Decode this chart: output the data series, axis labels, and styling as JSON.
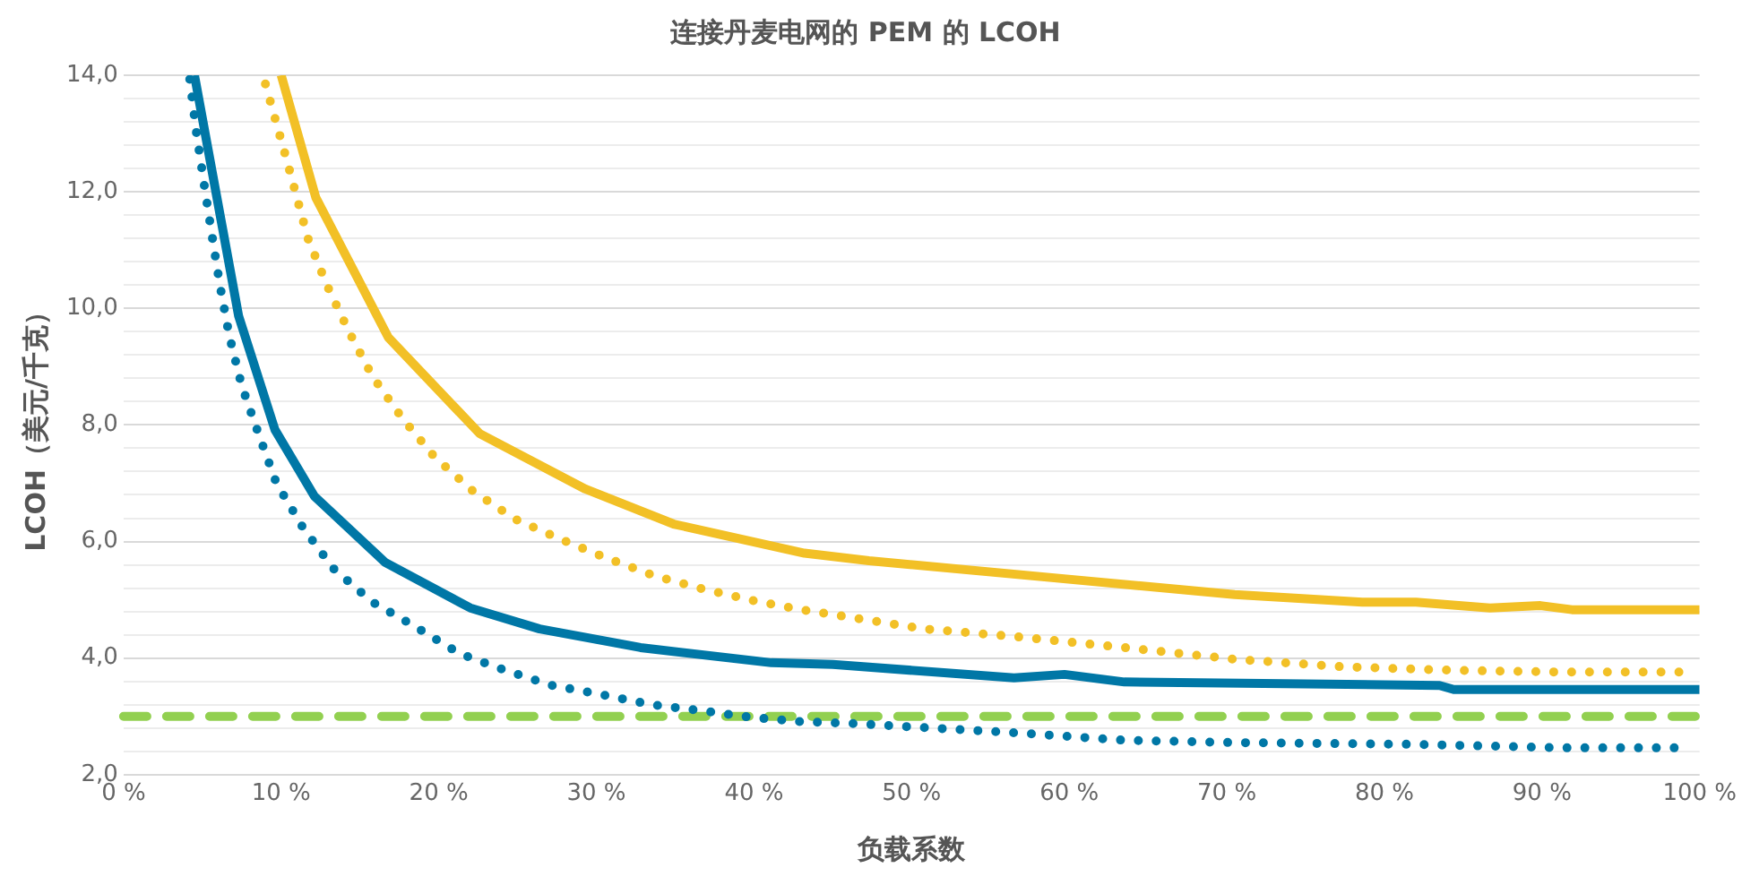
{
  "chart_data": {
    "type": "line",
    "title": "连接丹麦电网的 PEM 的 LCOH",
    "xlabel": "负载系数",
    "ylabel": "LCOH（美元/千克）",
    "series": [
      {
        "color": "#0077a6",
        "line_style": "solid",
        "x": [
          4.5,
          7.3,
          9.6,
          12.1,
          16.6,
          22.0,
          26.4,
          32.8,
          41.1,
          45.0,
          56.5,
          59.7,
          63.5,
          83.5,
          84.4,
          100
        ],
        "values": [
          14.0,
          9.87,
          7.92,
          6.78,
          5.64,
          4.86,
          4.5,
          4.18,
          3.92,
          3.89,
          3.66,
          3.72,
          3.59,
          3.53,
          3.46,
          3.46
        ]
      },
      {
        "color": "#f2c026",
        "line_style": "solid",
        "x": [
          10.0,
          12.2,
          16.8,
          22.6,
          29.3,
          34.9,
          43.2,
          47.3,
          58.9,
          70.5,
          78.6,
          82.0,
          86.7,
          89.9,
          91.9,
          100
        ],
        "values": [
          14.0,
          11.9,
          9.5,
          7.85,
          6.9,
          6.3,
          5.8,
          5.67,
          5.38,
          5.09,
          4.96,
          4.96,
          4.86,
          4.9,
          4.83,
          4.83
        ]
      },
      {
        "color": "#f2c026",
        "line_style": "dotted",
        "x": [
          9.0,
          10.4,
          11.7,
          12.9,
          14.3,
          15.8,
          17.7,
          19.7,
          22.1,
          24.8,
          27.8,
          30.7,
          33.7,
          36.7,
          39.9,
          43.0,
          46.1,
          50.8,
          56.5,
          63.5,
          70.5,
          77.4,
          84.4,
          91.3,
          98.8
        ],
        "values": [
          13.85,
          12.5,
          11.2,
          10.4,
          9.6,
          8.83,
          8.11,
          7.46,
          6.88,
          6.39,
          6.03,
          5.71,
          5.41,
          5.19,
          4.99,
          4.83,
          4.7,
          4.5,
          4.37,
          4.18,
          3.98,
          3.85,
          3.79,
          3.76,
          3.76
        ]
      },
      {
        "color": "#0077a6",
        "line_style": "dotted",
        "x": [
          4.2,
          4.6,
          5.1,
          5.6,
          6.1,
          6.7,
          7.5,
          8.6,
          9.7,
          11.4,
          13.3,
          15.8,
          18.5,
          21.3,
          24.2,
          27.2,
          30.4,
          33.5,
          36.6,
          39.9,
          43.0,
          46.1,
          56.5,
          63.5,
          70.5,
          82.0,
          91.3,
          98.5
        ],
        "values": [
          13.93,
          13.06,
          12.15,
          11.27,
          10.42,
          9.54,
          8.67,
          7.82,
          7.0,
          6.23,
          5.54,
          4.96,
          4.54,
          4.08,
          3.79,
          3.53,
          3.37,
          3.2,
          3.1,
          2.98,
          2.91,
          2.88,
          2.72,
          2.59,
          2.55,
          2.52,
          2.46,
          2.46
        ]
      }
    ],
    "ref_lines": [
      {
        "axis": "y",
        "value": 3.0,
        "color": "#92d050",
        "line_style": "dashed"
      }
    ],
    "xlim": [
      0,
      100
    ],
    "xticks": [
      {
        "value": 0,
        "label": "0 %"
      },
      {
        "value": 10,
        "label": "10 %"
      },
      {
        "value": 20,
        "label": "20 %"
      },
      {
        "value": 30,
        "label": "30 %"
      },
      {
        "value": 40,
        "label": "40 %"
      },
      {
        "value": 50,
        "label": "50 %"
      },
      {
        "value": 60,
        "label": "60 %"
      },
      {
        "value": 70,
        "label": "70 %"
      },
      {
        "value": 80,
        "label": "80 %"
      },
      {
        "value": 90,
        "label": "90 %"
      },
      {
        "value": 100,
        "label": "100 %"
      }
    ],
    "ylim": [
      2,
      14
    ],
    "yticks": [
      {
        "value": 2,
        "label": "2,0"
      },
      {
        "value": 2.4,
        "label": null
      },
      {
        "value": 2.8,
        "label": null
      },
      {
        "value": 3.2,
        "label": null
      },
      {
        "value": 3.6,
        "label": null
      },
      {
        "value": 4,
        "label": "4,0"
      },
      {
        "value": 4.4,
        "label": null
      },
      {
        "value": 4.8,
        "label": null
      },
      {
        "value": 5.2,
        "label": null
      },
      {
        "value": 5.6,
        "label": null
      },
      {
        "value": 6,
        "label": "6,0"
      },
      {
        "value": 6.4,
        "label": null
      },
      {
        "value": 6.8,
        "label": null
      },
      {
        "value": 7.2,
        "label": null
      },
      {
        "value": 7.6,
        "label": null
      },
      {
        "value": 8,
        "label": "8,0"
      },
      {
        "value": 8.4,
        "label": null
      },
      {
        "value": 8.8,
        "label": null
      },
      {
        "value": 9.2,
        "label": null
      },
      {
        "value": 9.6,
        "label": null
      },
      {
        "value": 10,
        "label": "10,0"
      },
      {
        "value": 10.4,
        "label": null
      },
      {
        "value": 10.8,
        "label": null
      },
      {
        "value": 11.2,
        "label": null
      },
      {
        "value": 11.6,
        "label": null
      },
      {
        "value": 12,
        "label": "12,0"
      },
      {
        "value": 12.4,
        "label": null
      },
      {
        "value": 12.8,
        "label": null
      },
      {
        "value": 13.2,
        "label": null
      },
      {
        "value": 13.6,
        "label": null
      },
      {
        "value": 14,
        "label": "14,0"
      }
    ],
    "grid": "y",
    "legend": false,
    "marker": "none"
  }
}
